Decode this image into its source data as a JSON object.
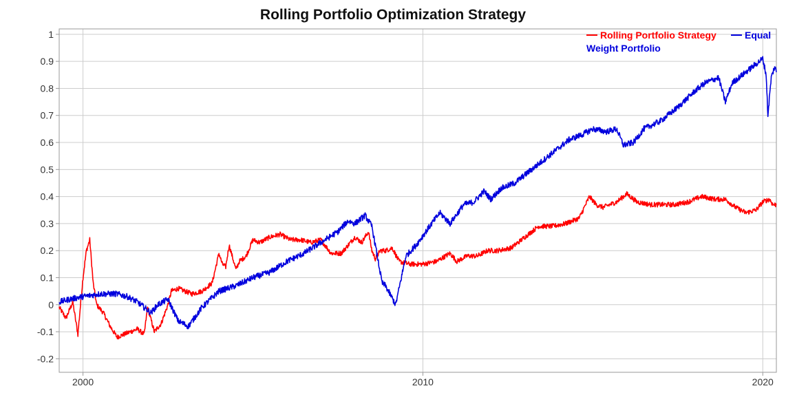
{
  "chart_data": {
    "type": "line",
    "title": "Rolling Portfolio Optimization Strategy",
    "xlabel": "",
    "ylabel": "",
    "xlim": [
      1999.3,
      2020.4
    ],
    "ylim": [
      -0.25,
      1.02
    ],
    "x_ticks": [
      {
        "value": 2000,
        "label": "2000"
      },
      {
        "value": 2010,
        "label": "2010"
      },
      {
        "value": 2020,
        "label": "2020"
      }
    ],
    "y_ticks": [
      {
        "value": 1,
        "label": "1"
      },
      {
        "value": 0.9,
        "label": "0.9"
      },
      {
        "value": 0.8,
        "label": "0.8"
      },
      {
        "value": 0.7,
        "label": "0.7"
      },
      {
        "value": 0.6,
        "label": "0.6"
      },
      {
        "value": 0.5,
        "label": "0.5"
      },
      {
        "value": 0.4,
        "label": "0.4"
      },
      {
        "value": 0.3,
        "label": "0.3"
      },
      {
        "value": 0.2,
        "label": "0.2"
      },
      {
        "value": 0.1,
        "label": "0.1"
      },
      {
        "value": 0,
        "label": "0"
      },
      {
        "value": -0.1,
        "label": "-0.1"
      },
      {
        "value": -0.2,
        "label": "-0.2"
      }
    ],
    "grid": true,
    "legend_position": "top-right",
    "series": [
      {
        "name": "Rolling Portfolio Strategy",
        "color": "#ff0000",
        "x": [
          1999.3,
          1999.5,
          1999.7,
          1999.85,
          2000.0,
          2000.1,
          2000.2,
          2000.3,
          2000.4,
          2000.6,
          2000.8,
          2001.0,
          2001.2,
          2001.4,
          2001.6,
          2001.8,
          2001.9,
          2002.1,
          2002.3,
          2002.5,
          2002.6,
          2002.8,
          2003.0,
          2003.2,
          2003.5,
          2003.8,
          2004.0,
          2004.1,
          2004.2,
          2004.3,
          2004.5,
          2004.6,
          2004.8,
          2005.0,
          2005.2,
          2005.5,
          2005.8,
          2006.1,
          2006.4,
          2006.7,
          2007.0,
          2007.3,
          2007.6,
          2007.8,
          2008.0,
          2008.2,
          2008.4,
          2008.5,
          2008.6,
          2008.75,
          2008.9,
          2009.1,
          2009.3,
          2009.6,
          2010.0,
          2010.4,
          2010.8,
          2011.0,
          2011.3,
          2011.6,
          2011.9,
          2012.2,
          2012.6,
          2013.0,
          2013.4,
          2013.8,
          2014.2,
          2014.6,
          2014.9,
          2015.1,
          2015.3,
          2015.7,
          2016.0,
          2016.3,
          2016.7,
          2017.0,
          2017.4,
          2017.8,
          2018.2,
          2018.6,
          2018.9,
          2019.2,
          2019.5,
          2019.8,
          2020.0,
          2020.2,
          2020.3,
          2020.4
        ],
        "values": [
          -0.01,
          -0.05,
          0.01,
          -0.11,
          0.1,
          0.2,
          0.24,
          0.08,
          0.0,
          -0.03,
          -0.08,
          -0.12,
          -0.11,
          -0.1,
          -0.09,
          -0.11,
          -0.01,
          -0.1,
          -0.07,
          0.0,
          0.05,
          0.06,
          0.05,
          0.04,
          0.05,
          0.08,
          0.19,
          0.15,
          0.14,
          0.22,
          0.13,
          0.16,
          0.18,
          0.24,
          0.23,
          0.25,
          0.26,
          0.24,
          0.24,
          0.23,
          0.24,
          0.19,
          0.19,
          0.22,
          0.25,
          0.23,
          0.27,
          0.2,
          0.17,
          0.2,
          0.2,
          0.21,
          0.16,
          0.15,
          0.15,
          0.16,
          0.19,
          0.16,
          0.18,
          0.18,
          0.2,
          0.2,
          0.21,
          0.25,
          0.29,
          0.29,
          0.3,
          0.32,
          0.4,
          0.37,
          0.36,
          0.38,
          0.41,
          0.38,
          0.37,
          0.37,
          0.37,
          0.38,
          0.4,
          0.39,
          0.39,
          0.36,
          0.34,
          0.35,
          0.38,
          0.39,
          0.37,
          0.37
        ]
      },
      {
        "name": "Equal Weight Portfolio",
        "color": "#0000dd",
        "x": [
          1999.3,
          1999.6,
          2000.0,
          2000.5,
          2001.0,
          2001.3,
          2001.6,
          2002.0,
          2002.2,
          2002.5,
          2002.8,
          2003.1,
          2003.5,
          2004.0,
          2004.5,
          2005.0,
          2005.5,
          2006.0,
          2006.5,
          2007.0,
          2007.5,
          2007.8,
          2008.0,
          2008.3,
          2008.5,
          2008.6,
          2008.8,
          2008.9,
          2009.2,
          2009.5,
          2009.8,
          2010.2,
          2010.5,
          2010.8,
          2011.2,
          2011.5,
          2011.8,
          2012.0,
          2012.3,
          2012.7,
          2013.0,
          2013.5,
          2014.0,
          2014.3,
          2014.7,
          2015.0,
          2015.4,
          2015.7,
          2015.9,
          2016.2,
          2016.5,
          2017.0,
          2017.5,
          2018.0,
          2018.3,
          2018.7,
          2018.9,
          2019.1,
          2019.5,
          2019.8,
          2020.0,
          2020.1,
          2020.15,
          2020.25,
          2020.35,
          2020.4
        ],
        "values": [
          0.01,
          0.02,
          0.03,
          0.04,
          0.04,
          0.03,
          0.01,
          -0.03,
          0.0,
          0.02,
          -0.06,
          -0.08,
          -0.01,
          0.05,
          0.07,
          0.1,
          0.12,
          0.16,
          0.19,
          0.23,
          0.27,
          0.31,
          0.3,
          0.33,
          0.29,
          0.22,
          0.08,
          0.07,
          0.0,
          0.18,
          0.22,
          0.29,
          0.34,
          0.3,
          0.37,
          0.38,
          0.42,
          0.39,
          0.43,
          0.45,
          0.48,
          0.53,
          0.58,
          0.61,
          0.63,
          0.65,
          0.64,
          0.65,
          0.59,
          0.6,
          0.65,
          0.68,
          0.73,
          0.79,
          0.82,
          0.84,
          0.75,
          0.82,
          0.86,
          0.89,
          0.91,
          0.85,
          0.7,
          0.84,
          0.88,
          0.86
        ]
      }
    ]
  }
}
